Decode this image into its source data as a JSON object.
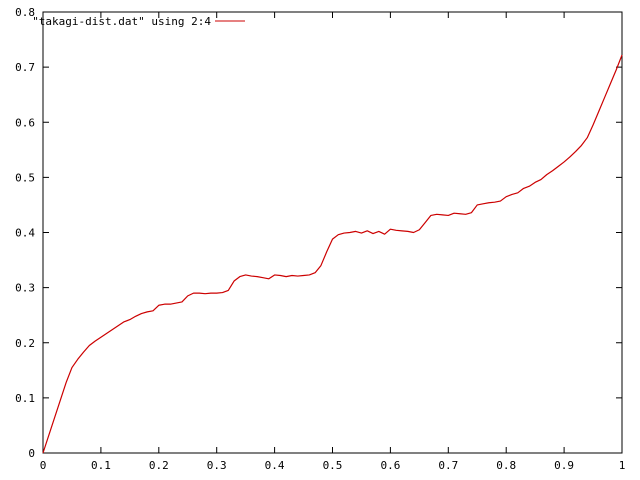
{
  "chart_data": {
    "type": "line",
    "title": "",
    "xlabel": "",
    "ylabel": "",
    "xlim": [
      0,
      1
    ],
    "ylim": [
      0,
      0.8
    ],
    "xticks": [
      "0",
      "0.1",
      "0.2",
      "0.3",
      "0.4",
      "0.5",
      "0.6",
      "0.7",
      "0.8",
      "0.9",
      "1"
    ],
    "yticks": [
      "0",
      "0.1",
      "0.2",
      "0.3",
      "0.4",
      "0.5",
      "0.6",
      "0.7",
      "0.8"
    ],
    "grid": false,
    "legend": {
      "placement": "top-left",
      "entries": [
        "\"takagi-dist.dat\" using 2:4"
      ]
    },
    "series": [
      {
        "name": "\"takagi-dist.dat\" using 2:4",
        "color": "#cc0000",
        "x": [
          0,
          0.01,
          0.02,
          0.03,
          0.04,
          0.05,
          0.06,
          0.07,
          0.08,
          0.09,
          0.1,
          0.11,
          0.12,
          0.13,
          0.14,
          0.15,
          0.16,
          0.17,
          0.18,
          0.19,
          0.2,
          0.21,
          0.22,
          0.23,
          0.24,
          0.25,
          0.26,
          0.27,
          0.28,
          0.29,
          0.3,
          0.31,
          0.32,
          0.33,
          0.34,
          0.35,
          0.36,
          0.37,
          0.38,
          0.39,
          0.4,
          0.41,
          0.42,
          0.43,
          0.44,
          0.45,
          0.46,
          0.47,
          0.48,
          0.49,
          0.5,
          0.51,
          0.52,
          0.53,
          0.54,
          0.55,
          0.56,
          0.57,
          0.58,
          0.59,
          0.6,
          0.61,
          0.62,
          0.63,
          0.64,
          0.65,
          0.66,
          0.67,
          0.68,
          0.69,
          0.7,
          0.71,
          0.72,
          0.73,
          0.74,
          0.75,
          0.76,
          0.77,
          0.78,
          0.79,
          0.8,
          0.81,
          0.82,
          0.83,
          0.84,
          0.85,
          0.86,
          0.87,
          0.88,
          0.89,
          0.9,
          0.91,
          0.92,
          0.93,
          0.94,
          0.95,
          0.96,
          0.97,
          0.98,
          0.99,
          1.0
        ],
        "y": [
          0,
          0.032,
          0.064,
          0.096,
          0.128,
          0.155,
          0.17,
          0.183,
          0.195,
          0.203,
          0.21,
          0.217,
          0.224,
          0.231,
          0.238,
          0.242,
          0.248,
          0.253,
          0.256,
          0.258,
          0.268,
          0.27,
          0.27,
          0.272,
          0.274,
          0.285,
          0.29,
          0.29,
          0.289,
          0.29,
          0.29,
          0.291,
          0.295,
          0.312,
          0.32,
          0.323,
          0.321,
          0.32,
          0.318,
          0.316,
          0.323,
          0.322,
          0.32,
          0.322,
          0.321,
          0.322,
          0.323,
          0.327,
          0.34,
          0.365,
          0.388,
          0.396,
          0.399,
          0.4,
          0.402,
          0.399,
          0.403,
          0.398,
          0.402,
          0.397,
          0.406,
          0.404,
          0.403,
          0.402,
          0.4,
          0.405,
          0.418,
          0.431,
          0.433,
          0.432,
          0.431,
          0.435,
          0.434,
          0.433,
          0.436,
          0.45,
          0.452,
          0.454,
          0.455,
          0.457,
          0.465,
          0.469,
          0.472,
          0.48,
          0.484,
          0.491,
          0.496,
          0.505,
          0.512,
          0.52,
          0.528,
          0.537,
          0.547,
          0.558,
          0.572,
          0.595,
          0.62,
          0.645,
          0.67,
          0.695,
          0.722
        ]
      }
    ]
  }
}
